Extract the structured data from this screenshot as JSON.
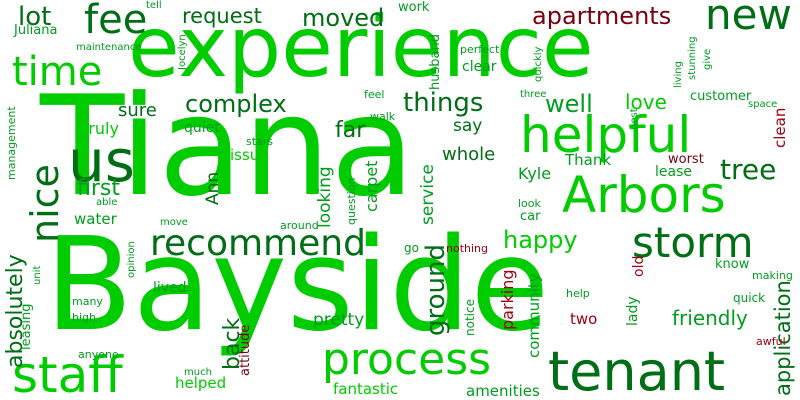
{
  "words": {
    "baysided": "Bayside",
    "tiana": "Tiana",
    "experience": "experience",
    "tenant": "tenant",
    "staff": "staff",
    "process": "process",
    "arbors": "Arbors",
    "helpful": "helpful",
    "recommend": "recommend",
    "us": "us",
    "time": "time",
    "storm": "storm",
    "fee": "fee",
    "new": "new",
    "nice": "nice",
    "complex": "complex",
    "things": "things",
    "moved": "moved",
    "apartments": "apartments",
    "request": "request",
    "lot": "lot",
    "tree": "tree",
    "application": "application",
    "ground": "ground",
    "happy": "happy",
    "first": "first",
    "back": "back",
    "absolutely": "absolutely",
    "friendly": "friendly",
    "pretty": "pretty",
    "say": "say",
    "well": "well",
    "love": "love",
    "far": "far",
    "sure": "sure",
    "truly": "truly",
    "quiet": "quiet",
    "issue": "issue",
    "looking": "looking",
    "carpet": "carpet",
    "service": "service",
    "whole": "whole",
    "kyle": "Kyle",
    "thank": "Thank",
    "lease": "lease",
    "worst": "worst",
    "customer": "customer",
    "clean": "clean",
    "ann": "Ann",
    "water": "water",
    "lived": "lived",
    "community": "community",
    "parking": "parking",
    "two": "two",
    "old": "old",
    "know": "know",
    "making": "making",
    "quick": "quick",
    "lady": "lady",
    "help": "help",
    "awful": "awful",
    "helped": "helped",
    "fantastic": "fantastic",
    "amenities": "amenities",
    "leasing": "leasing",
    "unit": "unit",
    "many": "many",
    "high": "high",
    "anyone": "anyone",
    "much": "much",
    "attitude": "attitude",
    "opinion": "opinion",
    "move": "move",
    "around": "around",
    "car": "car",
    "look": "look",
    "go": "go",
    "nothing": "nothing",
    "notice": "notice",
    "question": "question",
    "stars": "stars",
    "management": "management",
    "able": "able",
    "juliana": "Juliana",
    "maintenance": "maintenance",
    "jocelyn": "Jocelyn",
    "tell": "tell",
    "work": "work",
    "husband": "husband",
    "clear": "clear",
    "perfect": "perfect",
    "quickly": "quickly",
    "stunning": "stunning",
    "living": "living",
    "give": "give",
    "three": "three",
    "feel": "feel",
    "walk": "walk",
    "best": "best",
    "space": "space"
  },
  "colors": {
    "green_bright": "#00cc00",
    "green_mid": "#009e1f",
    "green_dark": "#006e15",
    "red": "#a0000f",
    "red_dark": "#7a0010",
    "background": "#ffffff"
  }
}
